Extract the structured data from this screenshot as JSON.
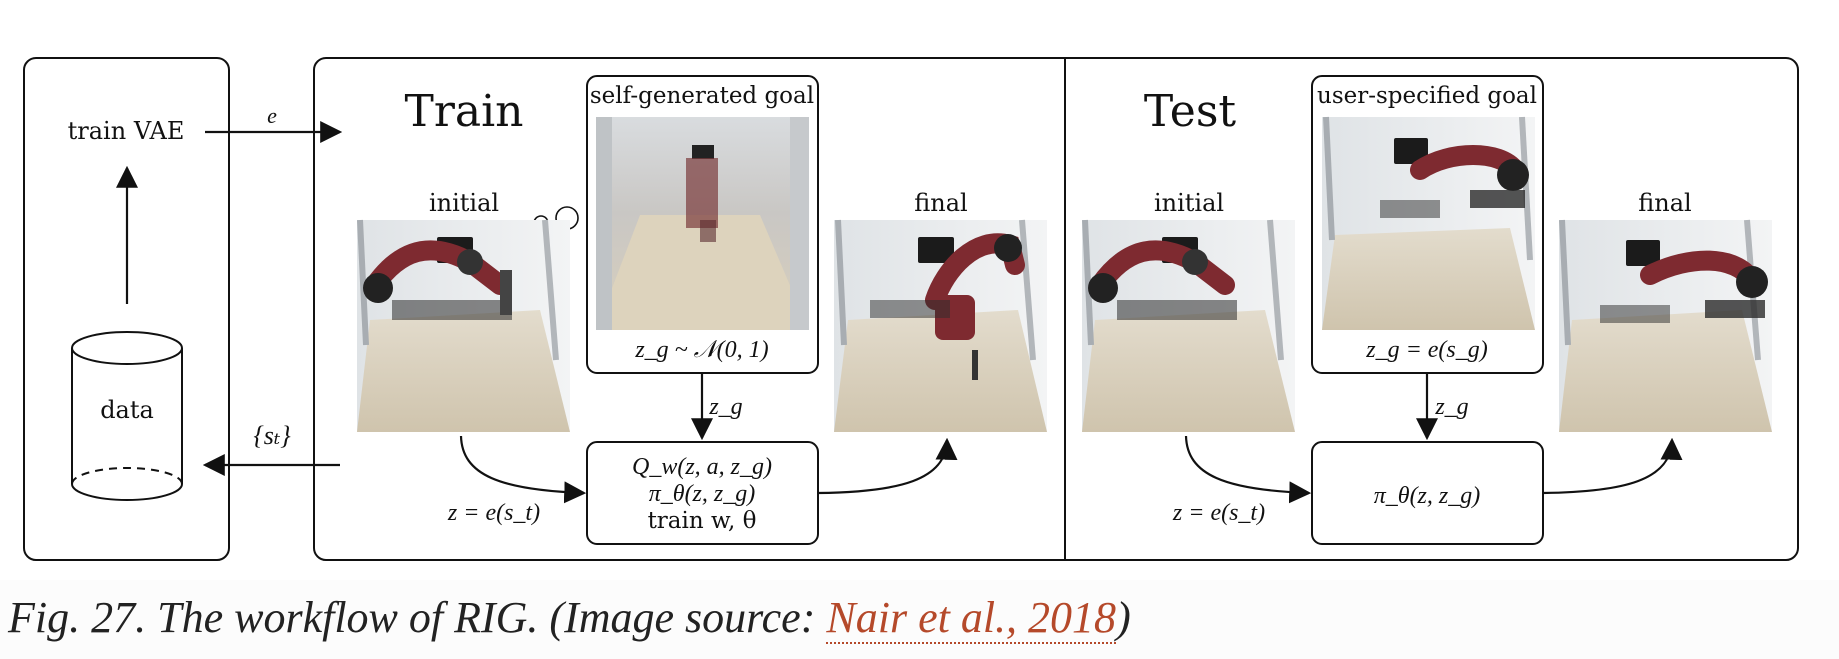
{
  "left_panel": {
    "train_vae": "train VAE",
    "data": "data",
    "arrow_e": "e",
    "arrow_st": "{sₜ}"
  },
  "train_panel": {
    "title": "Train",
    "goal_label": "self-generated goal",
    "goal_formula": "z_g ~ 𝒩(0, 1)",
    "initial": "initial",
    "final": "final",
    "zg_label": "z_g",
    "encode_label": "z = e(s_t)",
    "q_line": "Q_w(z, a, z_g)",
    "pi_line": "π_θ(z, z_g)",
    "train_line": "train w, θ"
  },
  "test_panel": {
    "title": "Test",
    "goal_label": "user-specified goal",
    "goal_formula": "z_g = e(s_g)",
    "initial": "initial",
    "final": "final",
    "zg_label": "z_g",
    "encode_label": "z = e(s_t)",
    "pi_line": "π_θ(z, z_g)"
  },
  "caption": {
    "prefix": "Fig. 27. The workflow of RIG. (Image source: ",
    "link": "Nair et al., 2018",
    "suffix": ")"
  }
}
